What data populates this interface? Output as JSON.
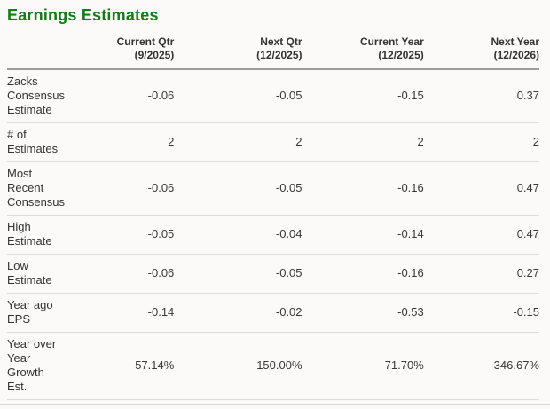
{
  "title": "Earnings Estimates",
  "accent_color": "#117c18",
  "table": {
    "columns": [
      {
        "line1": "Current Qtr",
        "line2": "(9/2025)"
      },
      {
        "line1": "Next Qtr",
        "line2": "(12/2025)"
      },
      {
        "line1": "Current Year",
        "line2": "(12/2025)"
      },
      {
        "line1": "Next Year",
        "line2": "(12/2026)"
      }
    ],
    "rows": [
      {
        "label": "Zacks Consensus Estimate",
        "values": [
          "-0.06",
          "-0.05",
          "-0.15",
          "0.37"
        ]
      },
      {
        "label": "# of Estimates",
        "values": [
          "2",
          "2",
          "2",
          "2"
        ]
      },
      {
        "label": "Most Recent Consensus",
        "values": [
          "-0.06",
          "-0.05",
          "-0.16",
          "0.47"
        ]
      },
      {
        "label": "High Estimate",
        "values": [
          "-0.05",
          "-0.04",
          "-0.14",
          "0.47"
        ]
      },
      {
        "label": "Low Estimate",
        "values": [
          "-0.06",
          "-0.05",
          "-0.16",
          "0.27"
        ]
      },
      {
        "label": "Year ago EPS",
        "values": [
          "-0.14",
          "-0.02",
          "-0.53",
          "-0.15"
        ]
      },
      {
        "label": "Year over Year Growth Est.",
        "values": [
          "57.14%",
          "-150.00%",
          "71.70%",
          "346.67%"
        ]
      }
    ]
  }
}
